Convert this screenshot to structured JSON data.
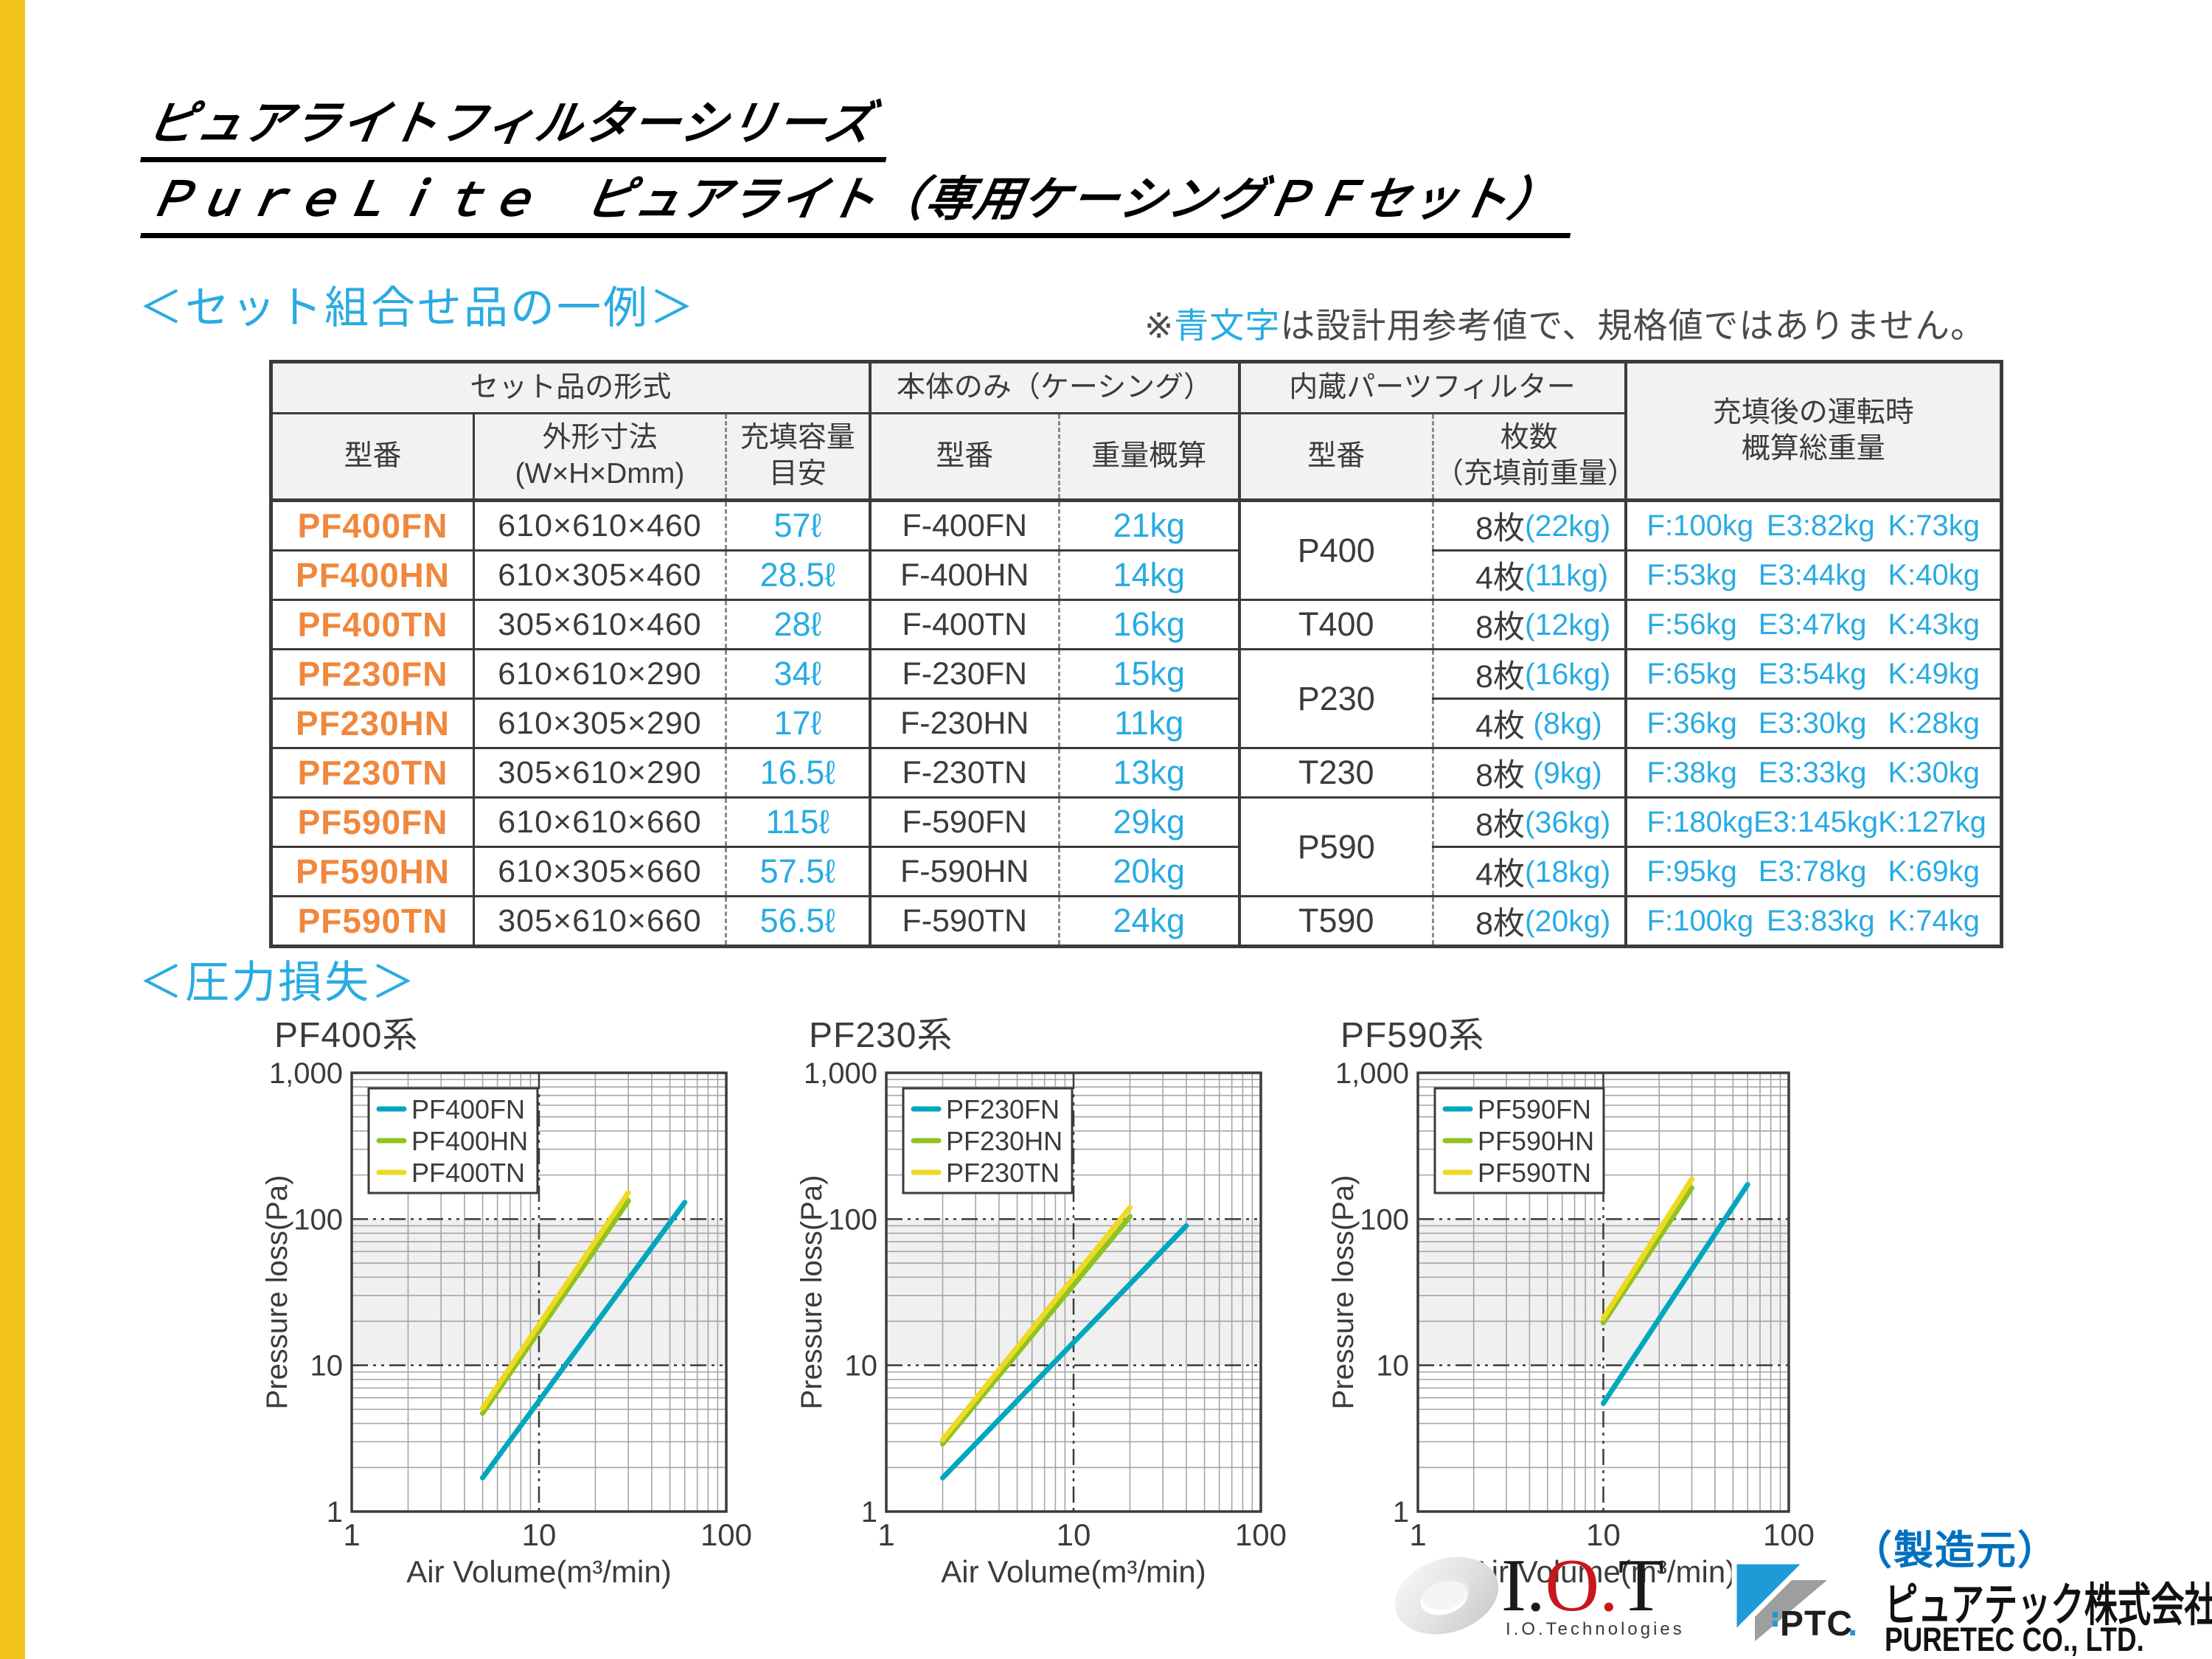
{
  "page": {
    "title_line1": "ピュアライトフィルターシリーズ",
    "title_line2": "ＰｕｒｅＬｉｔｅ　ピュアライト（専用ケーシングＰＦセット）",
    "section_set": "＜セット組合せ品の一例＞",
    "section_pressure": "＜圧力損失＞",
    "note_prefix": "※",
    "note_highlight": "青文字",
    "note_suffix": "は設計用参考値で、規格値ではありません。"
  },
  "table": {
    "groups": [
      {
        "label": "セット品の形式",
        "colspan": 3
      },
      {
        "label": "本体のみ（ケーシング）",
        "colspan": 2
      },
      {
        "label": "内蔵パーツフィルター",
        "colspan": 2
      },
      {
        "label": "充填後の運転時\n概算総重量",
        "colspan": 1,
        "rowspan": 2
      }
    ],
    "sub_headers": [
      "型番",
      "外形寸法\n(W×H×Dmm)",
      "充填容量\n目安",
      "型番",
      "重量概算",
      "型番",
      "枚数\n（充填前重量）"
    ],
    "rows": [
      {
        "model": "PF400FN",
        "dims": "610×610×460",
        "capacity": "57ℓ",
        "case_model": "F-400FN",
        "case_weight": "21kg",
        "filter_model": "P400",
        "filter_rowspan": 2,
        "sheets": "8枚",
        "sheets_weight": "(22kg)",
        "total": [
          "F:100kg",
          "E3:82kg",
          "K:73kg"
        ]
      },
      {
        "model": "PF400HN",
        "dims": "610×305×460",
        "capacity": "28.5ℓ",
        "case_model": "F-400HN",
        "case_weight": "14kg",
        "sheets": "4枚",
        "sheets_weight": "(11kg)",
        "total": [
          "F:53kg",
          "E3:44kg",
          "K:40kg"
        ]
      },
      {
        "model": "PF400TN",
        "dims": "305×610×460",
        "capacity": "28ℓ",
        "case_model": "F-400TN",
        "case_weight": "16kg",
        "filter_model": "T400",
        "filter_rowspan": 1,
        "sheets": "8枚",
        "sheets_weight": "(12kg)",
        "total": [
          "F:56kg",
          "E3:47kg",
          "K:43kg"
        ]
      },
      {
        "model": "PF230FN",
        "dims": "610×610×290",
        "capacity": "34ℓ",
        "case_model": "F-230FN",
        "case_weight": "15kg",
        "filter_model": "P230",
        "filter_rowspan": 2,
        "sheets": "8枚",
        "sheets_weight": "(16kg)",
        "total": [
          "F:65kg",
          "E3:54kg",
          "K:49kg"
        ]
      },
      {
        "model": "PF230HN",
        "dims": "610×305×290",
        "capacity": "17ℓ",
        "case_model": "F-230HN",
        "case_weight": "11kg",
        "sheets": "4枚",
        "sheets_weight": " (8kg)",
        "total": [
          "F:36kg",
          "E3:30kg",
          "K:28kg"
        ]
      },
      {
        "model": "PF230TN",
        "dims": "305×610×290",
        "capacity": "16.5ℓ",
        "case_model": "F-230TN",
        "case_weight": "13kg",
        "filter_model": "T230",
        "filter_rowspan": 1,
        "sheets": "8枚",
        "sheets_weight": " (9kg)",
        "total": [
          "F:38kg",
          "E3:33kg",
          "K:30kg"
        ]
      },
      {
        "model": "PF590FN",
        "dims": "610×610×660",
        "capacity": "115ℓ",
        "case_model": "F-590FN",
        "case_weight": "29kg",
        "filter_model": "P590",
        "filter_rowspan": 2,
        "sheets": "8枚",
        "sheets_weight": "(36kg)",
        "total": [
          "F:180kg",
          "E3:145kg",
          "K:127kg"
        ]
      },
      {
        "model": "PF590HN",
        "dims": "610×305×660",
        "capacity": "57.5ℓ",
        "case_model": "F-590HN",
        "case_weight": "20kg",
        "sheets": "4枚",
        "sheets_weight": "(18kg)",
        "total": [
          "F:95kg",
          "E3:78kg",
          "K:69kg"
        ]
      },
      {
        "model": "PF590TN",
        "dims": "305×610×660",
        "capacity": "56.5ℓ",
        "case_model": "F-590TN",
        "case_weight": "24kg",
        "filter_model": "T590",
        "filter_rowspan": 1,
        "sheets": "8枚",
        "sheets_weight": "(20kg)",
        "total": [
          "F:100kg",
          "E3:83kg",
          "K:74kg"
        ]
      }
    ]
  },
  "chart_data": [
    {
      "type": "line",
      "title": "PF400系",
      "xlabel": "Air Volume(m³/min)",
      "ylabel": "Pressure loss(Pa)",
      "xlim": [
        1,
        100
      ],
      "ylim": [
        1,
        1000
      ],
      "xscale": "log",
      "yscale": "log",
      "grid": true,
      "shaded_band_y": [
        10,
        100
      ],
      "legend_position": "top-left",
      "x_ticks": [
        "1",
        "10",
        "100"
      ],
      "y_ticks": [
        "1",
        "10",
        "100",
        "1,000"
      ],
      "series": [
        {
          "name": "PF400FN",
          "color": "#00A7BE",
          "points": [
            [
              5,
              1.7
            ],
            [
              60,
              130
            ]
          ]
        },
        {
          "name": "PF400HN",
          "color": "#8FC31F",
          "points": [
            [
              5,
              4.7
            ],
            [
              30,
              133
            ]
          ]
        },
        {
          "name": "PF400TN",
          "color": "#EFD921",
          "points": [
            [
              5,
              5.1
            ],
            [
              30,
              152
            ]
          ]
        }
      ]
    },
    {
      "type": "line",
      "title": "PF230系",
      "xlabel": "Air Volume(m³/min)",
      "ylabel": "Pressure loss(Pa)",
      "xlim": [
        1,
        100
      ],
      "ylim": [
        1,
        1000
      ],
      "xscale": "log",
      "yscale": "log",
      "grid": true,
      "shaded_band_y": [
        10,
        100
      ],
      "legend_position": "top-left",
      "x_ticks": [
        "1",
        "10",
        "100"
      ],
      "y_ticks": [
        "1",
        "10",
        "100",
        "1,000"
      ],
      "series": [
        {
          "name": "PF230FN",
          "color": "#00A7BE",
          "points": [
            [
              2,
              1.7
            ],
            [
              40,
              90
            ]
          ]
        },
        {
          "name": "PF230HN",
          "color": "#8FC31F",
          "points": [
            [
              2,
              2.9
            ],
            [
              20,
              104
            ]
          ]
        },
        {
          "name": "PF230TN",
          "color": "#EFD921",
          "points": [
            [
              2,
              3.1
            ],
            [
              20,
              120
            ]
          ]
        }
      ]
    },
    {
      "type": "line",
      "title": "PF590系",
      "xlabel": "Air Volume(m³/min)",
      "ylabel": "Pressure loss(Pa)",
      "xlim": [
        1,
        100
      ],
      "ylim": [
        1,
        1000
      ],
      "xscale": "log",
      "yscale": "log",
      "grid": true,
      "shaded_band_y": [
        10,
        100
      ],
      "legend_position": "top-left",
      "x_ticks": [
        "1",
        "10",
        "100"
      ],
      "y_ticks": [
        "1",
        "10",
        "100",
        "1,000"
      ],
      "series": [
        {
          "name": "PF590FN",
          "color": "#00A7BE",
          "points": [
            [
              10,
              5.5
            ],
            [
              60,
              172
            ]
          ]
        },
        {
          "name": "PF590HN",
          "color": "#8FC31F",
          "points": [
            [
              10,
              19.5
            ],
            [
              30,
              163
            ]
          ]
        },
        {
          "name": "PF590TN",
          "color": "#EFD921",
          "points": [
            [
              10,
              21
            ],
            [
              30,
              188
            ]
          ]
        }
      ]
    }
  ],
  "footer": {
    "maker_label": "（製造元）",
    "iot_parts": [
      [
        "I",
        "#1A1A1A"
      ],
      [
        ".",
        "#1A1A1A"
      ],
      [
        "O",
        "#C8161D"
      ],
      [
        ".",
        "#C8161D"
      ],
      [
        "T",
        "#1A1A1A"
      ]
    ],
    "iot_sub": "I.O.Technologies",
    "ptc_name": "PTC.",
    "company_jp": "ピュアテック株式会社",
    "company_en": "PURETEC CO., LTD."
  },
  "colors": {
    "accent_cyan": "#29ABE2",
    "model_orange": "#F0873C",
    "text_dark": "#3E3A39",
    "header_bg": "#F2F2F2",
    "maker_blue": "#0070BE",
    "ptc_blue": "#1E9BD7",
    "iot_red": "#C8161D",
    "line_teal": "#00A7BE",
    "line_green": "#8FC31F",
    "line_yellow": "#EFD921",
    "left_bar_yellow": "#F2C31B"
  }
}
